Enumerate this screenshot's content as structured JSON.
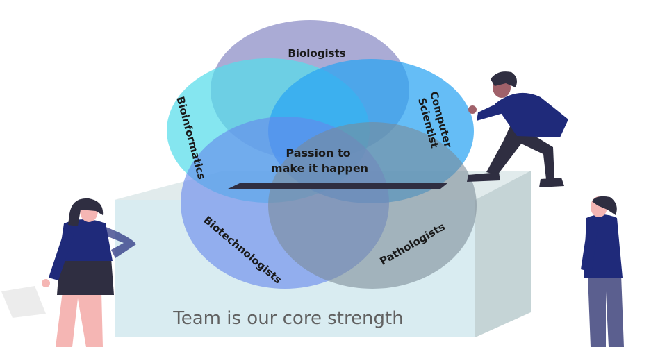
{
  "diagram": {
    "circles": [
      {
        "id": "biologists",
        "label": "Biologists",
        "color": "#8e8fc7"
      },
      {
        "id": "bioinformatics",
        "label": "Bioinformatics",
        "color": "#56dcea"
      },
      {
        "id": "computer",
        "label_lines": [
          "Computer",
          "Scientist"
        ],
        "color": "#2aa3f3"
      },
      {
        "id": "biotechnologists",
        "label": "Biotechnologists",
        "color": "#6688ec"
      },
      {
        "id": "pathologists",
        "label": "Pathologists",
        "color": "#7b8a96"
      }
    ],
    "center_lines": [
      "Passion to",
      "make it happen"
    ],
    "tagline": "Team is our core strength"
  },
  "colors": {
    "box_front": "#d2e9ee",
    "box_side": "#bfcfd1",
    "box_top": "#c9dadd",
    "slot": "#2f2e41",
    "shirt": "#1f2a7a",
    "skin_dark": "#a0616a",
    "skin_light": "#f5b6b4",
    "hair": "#2f2e41",
    "pants_dark": "#2f2e41",
    "pants_gray": "#5b5f8f"
  }
}
